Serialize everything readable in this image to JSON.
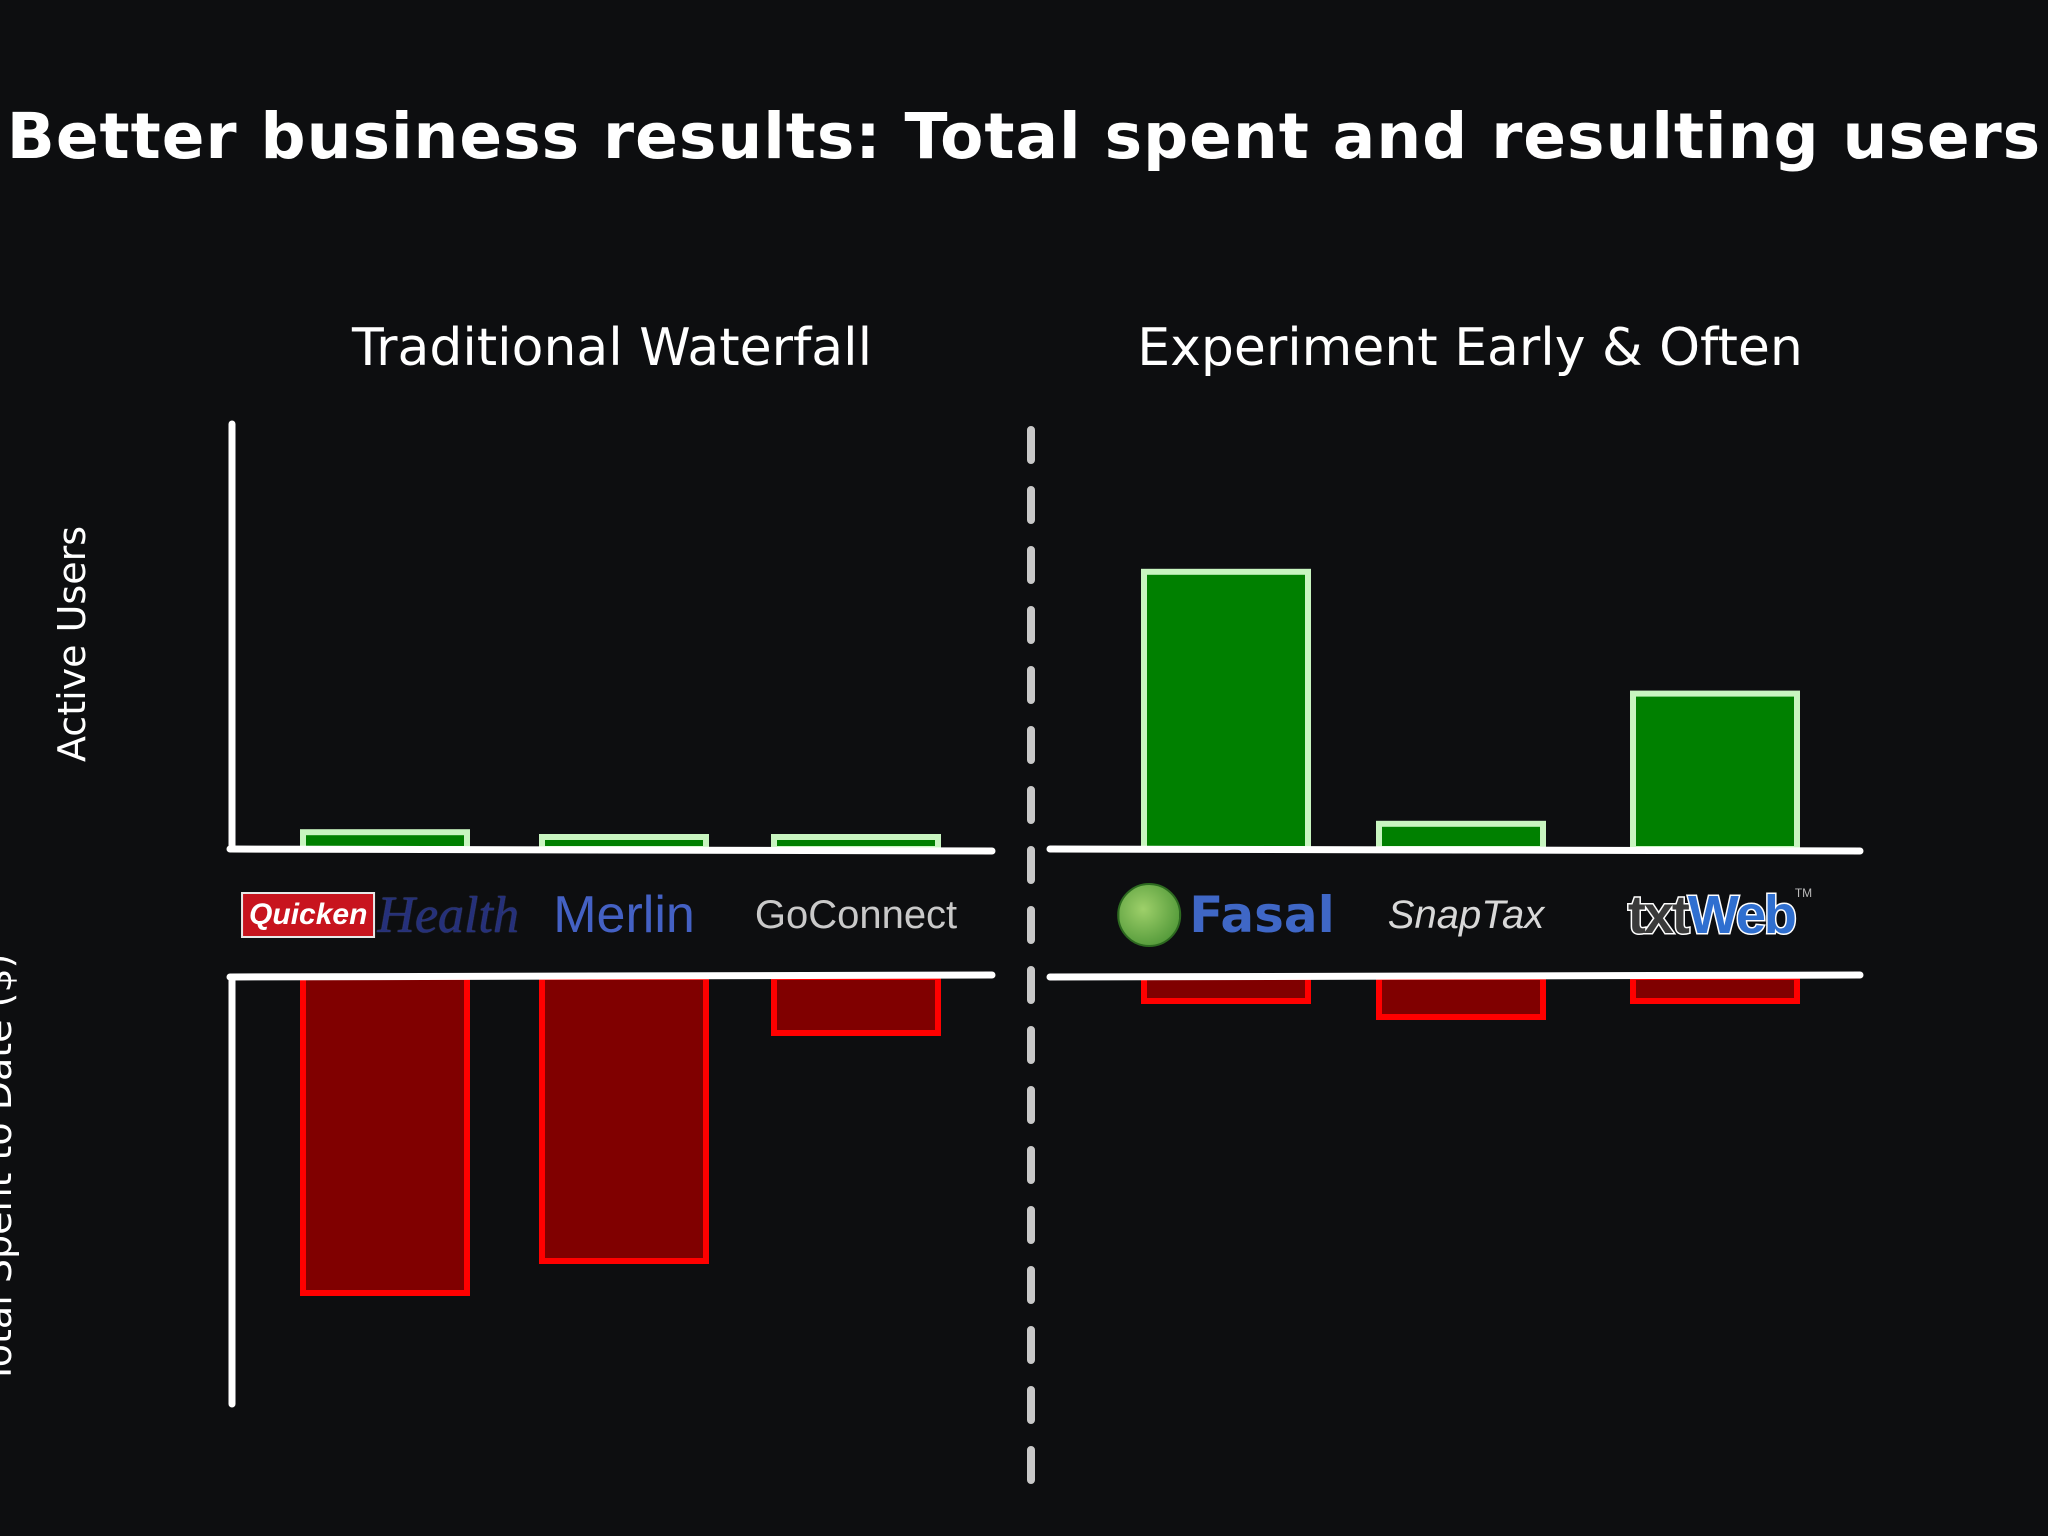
{
  "slide": {
    "title": "Better business results:  Total spent and resulting users"
  },
  "chart_data": [
    {
      "type": "bar",
      "title": "Traditional Waterfall",
      "categories": [
        "Quicken Health",
        "Merlin",
        "GoConnect"
      ],
      "series": [
        {
          "name": "Active Users",
          "values": [
            0.04,
            0,
            0
          ]
        },
        {
          "name": "Total Spent to Date ($)",
          "values": [
            0.79,
            0.71,
            0.14
          ]
        }
      ],
      "ylabel_top": "Active Users",
      "ylabel_bottom": "Total Spent to Date ($)",
      "ylim": [
        0,
        1
      ],
      "grid": false,
      "colors": {
        "users_fill": "#008000",
        "users_stroke": "#c8f5c0",
        "spent_fill": "#800000",
        "spent_stroke": "#ff0000"
      }
    },
    {
      "type": "bar",
      "title": "Experiment Early & Often",
      "categories": [
        "Fasal",
        "SnapTax",
        "txtWeb"
      ],
      "series": [
        {
          "name": "Active Users",
          "values": [
            0.66,
            0.06,
            0.37
          ]
        },
        {
          "name": "Total Spent to Date ($)",
          "values": [
            0.06,
            0.1,
            0.06
          ]
        }
      ],
      "ylim": [
        0,
        1
      ],
      "grid": false,
      "colors": {
        "users_fill": "#008000",
        "users_stroke": "#c8f5c0",
        "spent_fill": "#800000",
        "spent_stroke": "#ff0000"
      }
    }
  ],
  "brands": {
    "quicken_box": "Quicken",
    "quicken_health": "Health",
    "merlin": "Merlin",
    "goconnect": "GoConnect",
    "fasal": "Fasal",
    "snaptax": "SnapTax",
    "txtweb_txt": "txt",
    "txtweb_web": "Web",
    "txtweb_tm": "TM"
  },
  "icons": {
    "fasal_logo": "fasal-logo-icon"
  },
  "colors": {
    "background": "#0d0e10",
    "axis": "#ffffff",
    "divider": "#c8c8c8"
  }
}
